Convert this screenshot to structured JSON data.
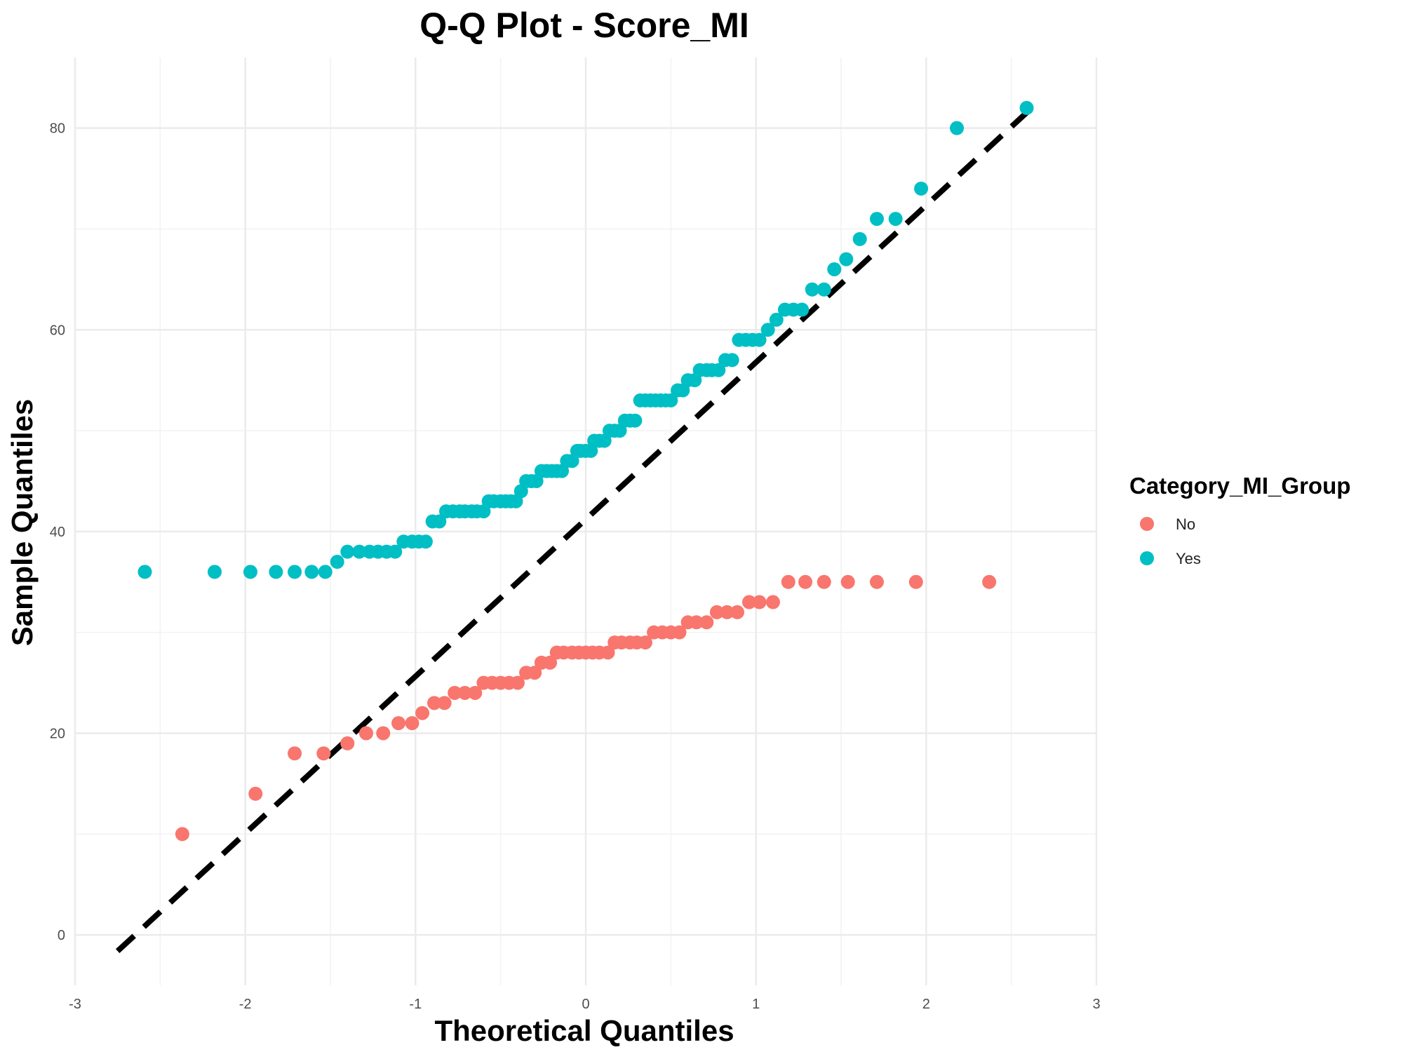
{
  "chart_data": {
    "type": "scatter",
    "title": "Q-Q Plot -  Score_MI",
    "xlabel": "Theoretical Quantiles",
    "ylabel": "Sample Quantiles",
    "xlim": [
      -3,
      3
    ],
    "ylim": [
      -5,
      87
    ],
    "x_ticks": [
      -3,
      -2,
      -1,
      0,
      1,
      2,
      3
    ],
    "y_ticks": [
      0,
      20,
      40,
      60,
      80
    ],
    "x_tick_labels": [
      "-3",
      "-2",
      "-1",
      "0",
      "1",
      "2",
      "3"
    ],
    "y_tick_labels": [
      "0",
      "20",
      "40",
      "60",
      "80"
    ],
    "grid": true,
    "legend": {
      "title": "Category_MI_Group",
      "placement": "right",
      "entries": [
        {
          "label": "No",
          "color": "#F8766D"
        },
        {
          "label": "Yes",
          "color": "#00BFC4"
        }
      ]
    },
    "reference_line": {
      "style": "dashed",
      "color": "#000000",
      "x": [
        -2.75,
        2.62
      ],
      "y": [
        -1.6,
        82
      ]
    },
    "series": [
      {
        "name": "No",
        "color": "#F8766D",
        "points": [
          [
            -2.37,
            10
          ],
          [
            -1.94,
            14
          ],
          [
            -1.71,
            18
          ],
          [
            -1.54,
            18
          ],
          [
            -1.4,
            19
          ],
          [
            -1.29,
            20
          ],
          [
            -1.19,
            20
          ],
          [
            -1.1,
            21
          ],
          [
            -1.02,
            21
          ],
          [
            -0.96,
            22
          ],
          [
            -0.89,
            23
          ],
          [
            -0.83,
            23
          ],
          [
            -0.77,
            24
          ],
          [
            -0.71,
            24
          ],
          [
            -0.65,
            24
          ],
          [
            -0.6,
            25
          ],
          [
            -0.55,
            25
          ],
          [
            -0.5,
            25
          ],
          [
            -0.45,
            25
          ],
          [
            -0.4,
            25
          ],
          [
            -0.35,
            26
          ],
          [
            -0.3,
            26
          ],
          [
            -0.26,
            27
          ],
          [
            -0.21,
            27
          ],
          [
            -0.17,
            28
          ],
          [
            -0.13,
            28
          ],
          [
            -0.08,
            28
          ],
          [
            -0.04,
            28
          ],
          [
            0.0,
            28
          ],
          [
            0.04,
            28
          ],
          [
            0.08,
            28
          ],
          [
            0.13,
            28
          ],
          [
            0.17,
            29
          ],
          [
            0.21,
            29
          ],
          [
            0.26,
            29
          ],
          [
            0.3,
            29
          ],
          [
            0.35,
            29
          ],
          [
            0.4,
            30
          ],
          [
            0.45,
            30
          ],
          [
            0.5,
            30
          ],
          [
            0.55,
            30
          ],
          [
            0.6,
            31
          ],
          [
            0.65,
            31
          ],
          [
            0.71,
            31
          ],
          [
            0.77,
            32
          ],
          [
            0.83,
            32
          ],
          [
            0.89,
            32
          ],
          [
            0.96,
            33
          ],
          [
            1.02,
            33
          ],
          [
            1.1,
            33
          ],
          [
            1.19,
            35
          ],
          [
            1.29,
            35
          ],
          [
            1.4,
            35
          ],
          [
            1.54,
            35
          ],
          [
            1.71,
            35
          ],
          [
            1.94,
            35
          ],
          [
            2.37,
            35
          ]
        ]
      },
      {
        "name": "Yes",
        "color": "#00BFC4",
        "points": [
          [
            -2.59,
            36
          ],
          [
            -2.18,
            36
          ],
          [
            -1.97,
            36
          ],
          [
            -1.82,
            36
          ],
          [
            -1.71,
            36
          ],
          [
            -1.61,
            36
          ],
          [
            -1.53,
            36
          ],
          [
            -1.46,
            37
          ],
          [
            -1.4,
            38
          ],
          [
            -1.33,
            38
          ],
          [
            -1.27,
            38
          ],
          [
            -1.22,
            38
          ],
          [
            -1.17,
            38
          ],
          [
            -1.12,
            38
          ],
          [
            -1.07,
            39
          ],
          [
            -1.02,
            39
          ],
          [
            -0.98,
            39
          ],
          [
            -0.94,
            39
          ],
          [
            -0.9,
            41
          ],
          [
            -0.86,
            41
          ],
          [
            -0.82,
            42
          ],
          [
            -0.78,
            42
          ],
          [
            -0.74,
            42
          ],
          [
            -0.71,
            42
          ],
          [
            -0.67,
            42
          ],
          [
            -0.64,
            42
          ],
          [
            -0.6,
            42
          ],
          [
            -0.57,
            43
          ],
          [
            -0.54,
            43
          ],
          [
            -0.5,
            43
          ],
          [
            -0.47,
            43
          ],
          [
            -0.44,
            43
          ],
          [
            -0.41,
            43
          ],
          [
            -0.38,
            44
          ],
          [
            -0.35,
            45
          ],
          [
            -0.32,
            45
          ],
          [
            -0.29,
            45
          ],
          [
            -0.26,
            46
          ],
          [
            -0.23,
            46
          ],
          [
            -0.2,
            46
          ],
          [
            -0.17,
            46
          ],
          [
            -0.14,
            46
          ],
          [
            -0.11,
            47
          ],
          [
            -0.08,
            47
          ],
          [
            -0.05,
            48
          ],
          [
            -0.03,
            48
          ],
          [
            0.0,
            48
          ],
          [
            0.03,
            48
          ],
          [
            0.05,
            49
          ],
          [
            0.08,
            49
          ],
          [
            0.11,
            49
          ],
          [
            0.14,
            50
          ],
          [
            0.17,
            50
          ],
          [
            0.2,
            50
          ],
          [
            0.23,
            51
          ],
          [
            0.26,
            51
          ],
          [
            0.29,
            51
          ],
          [
            0.32,
            53
          ],
          [
            0.35,
            53
          ],
          [
            0.38,
            53
          ],
          [
            0.41,
            53
          ],
          [
            0.44,
            53
          ],
          [
            0.47,
            53
          ],
          [
            0.5,
            53
          ],
          [
            0.54,
            54
          ],
          [
            0.57,
            54
          ],
          [
            0.6,
            55
          ],
          [
            0.64,
            55
          ],
          [
            0.67,
            56
          ],
          [
            0.71,
            56
          ],
          [
            0.74,
            56
          ],
          [
            0.78,
            56
          ],
          [
            0.82,
            57
          ],
          [
            0.86,
            57
          ],
          [
            0.9,
            59
          ],
          [
            0.94,
            59
          ],
          [
            0.98,
            59
          ],
          [
            1.02,
            59
          ],
          [
            1.07,
            60
          ],
          [
            1.12,
            61
          ],
          [
            1.17,
            62
          ],
          [
            1.22,
            62
          ],
          [
            1.27,
            62
          ],
          [
            1.33,
            64
          ],
          [
            1.4,
            64
          ],
          [
            1.46,
            66
          ],
          [
            1.53,
            67
          ],
          [
            1.61,
            69
          ],
          [
            1.71,
            71
          ],
          [
            1.82,
            71
          ],
          [
            1.97,
            74
          ],
          [
            2.18,
            80
          ],
          [
            2.59,
            82
          ]
        ]
      }
    ]
  }
}
